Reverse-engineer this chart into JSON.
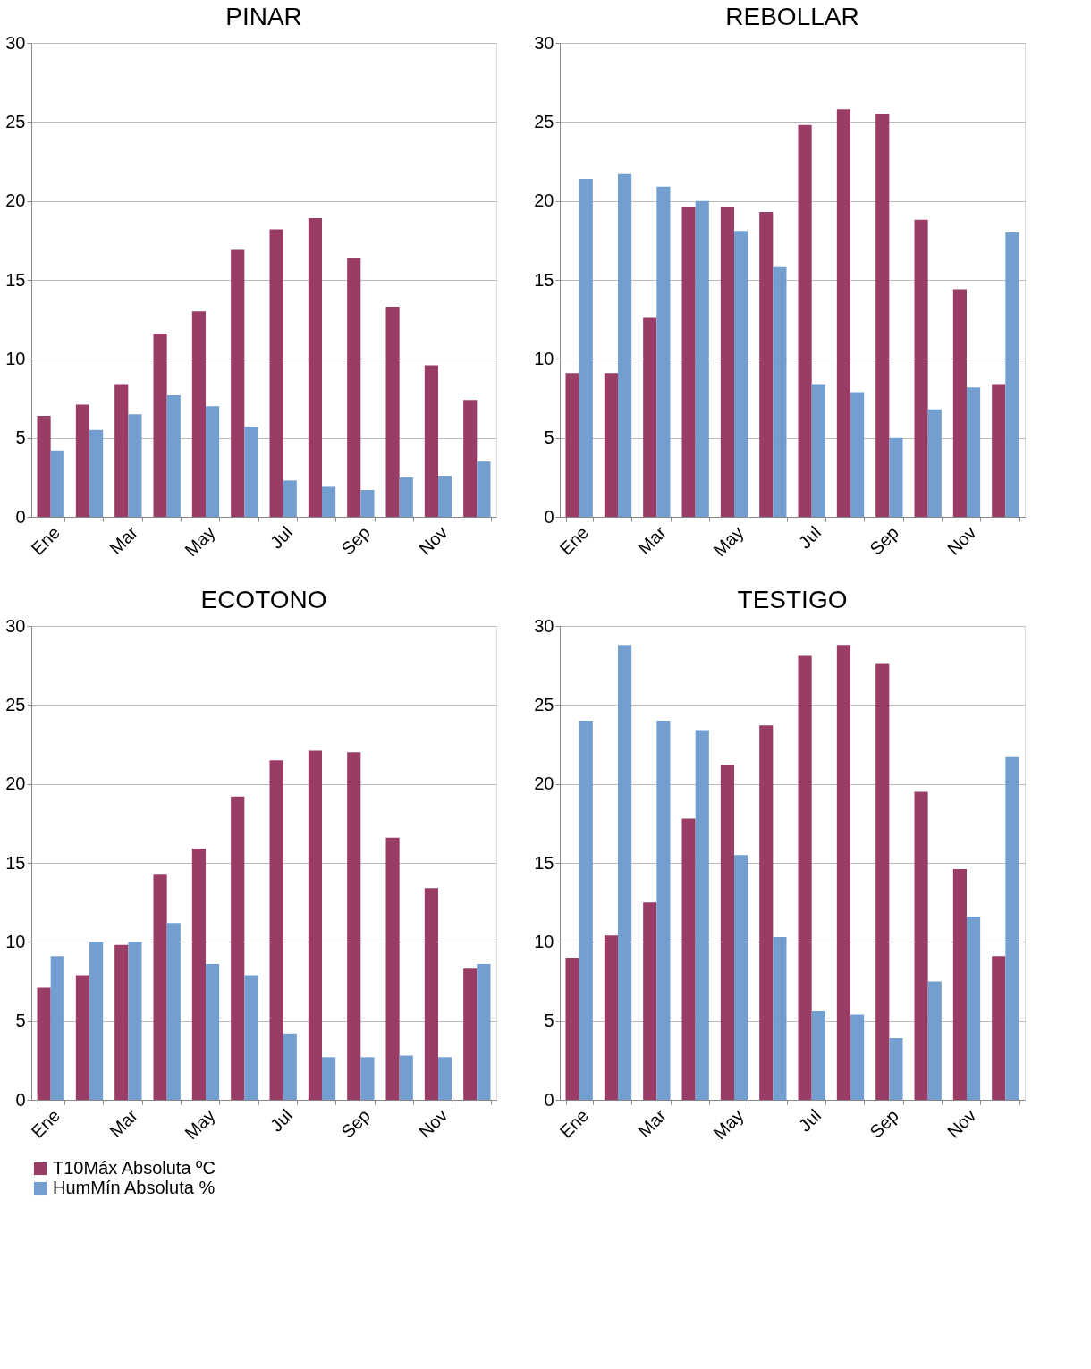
{
  "chart_data": [
    {
      "type": "bar",
      "title": "PINAR",
      "categories": [
        "Ene",
        null,
        "Mar",
        null,
        "May",
        null,
        "Jul",
        null,
        "Sep",
        null,
        "Nov",
        null
      ],
      "ylim": [
        0,
        30
      ],
      "yticks": [
        0,
        5,
        10,
        15,
        20,
        25,
        30
      ],
      "grid": "y",
      "legend": "bottom",
      "series": [
        {
          "name": "T10Máx Absoluta ºC",
          "color": "#993d66",
          "values": [
            6.4,
            7.1,
            8.4,
            11.6,
            13.0,
            16.9,
            18.2,
            18.9,
            16.4,
            13.3,
            9.6,
            7.4
          ]
        },
        {
          "name": "HumMín Absoluta %",
          "color": "#729fcf",
          "values": [
            4.2,
            5.5,
            6.5,
            7.7,
            7.0,
            5.7,
            2.3,
            1.9,
            1.7,
            2.5,
            2.6,
            3.5
          ]
        }
      ]
    },
    {
      "type": "bar",
      "title": "REBOLLAR",
      "categories": [
        "Ene",
        null,
        "Mar",
        null,
        "May",
        null,
        "Jul",
        null,
        "Sep",
        null,
        "Nov",
        null
      ],
      "ylim": [
        0,
        30
      ],
      "yticks": [
        0,
        5,
        10,
        15,
        20,
        25,
        30
      ],
      "grid": "y",
      "legend": "bottom",
      "series": [
        {
          "name": "T10Máx Absoluta ºC",
          "color": "#993d66",
          "values": [
            9.1,
            9.1,
            12.6,
            19.6,
            19.6,
            19.3,
            24.8,
            25.8,
            25.5,
            18.8,
            14.4,
            8.4
          ]
        },
        {
          "name": "HumMín Absoluta %",
          "color": "#729fcf",
          "values": [
            21.4,
            21.7,
            20.9,
            20.0,
            18.1,
            15.8,
            8.4,
            7.9,
            5.0,
            6.8,
            8.2,
            18.0
          ]
        }
      ]
    },
    {
      "type": "bar",
      "title": "ECOTONO",
      "categories": [
        "Ene",
        null,
        "Mar",
        null,
        "May",
        null,
        "Jul",
        null,
        "Sep",
        null,
        "Nov",
        null
      ],
      "ylim": [
        0,
        30
      ],
      "yticks": [
        0,
        5,
        10,
        15,
        20,
        25,
        30
      ],
      "grid": "y",
      "legend": "bottom",
      "series": [
        {
          "name": "T10Máx Absoluta ºC",
          "color": "#993d66",
          "values": [
            7.1,
            7.9,
            9.8,
            14.3,
            15.9,
            19.2,
            21.5,
            22.1,
            22.0,
            16.6,
            13.4,
            8.3
          ]
        },
        {
          "name": "HumMín Absoluta %",
          "color": "#729fcf",
          "values": [
            9.1,
            10.0,
            10.0,
            11.2,
            8.6,
            7.9,
            4.2,
            2.7,
            2.7,
            2.8,
            2.7,
            8.6
          ]
        }
      ]
    },
    {
      "type": "bar",
      "title": "TESTIGO",
      "categories": [
        "Ene",
        null,
        "Mar",
        null,
        "May",
        null,
        "Jul",
        null,
        "Sep",
        null,
        "Nov",
        null
      ],
      "ylim": [
        0,
        30
      ],
      "yticks": [
        0,
        5,
        10,
        15,
        20,
        25,
        30
      ],
      "grid": "y",
      "legend": "bottom",
      "series": [
        {
          "name": "T10Máx Absoluta ºC",
          "color": "#993d66",
          "values": [
            9.0,
            10.4,
            12.5,
            17.8,
            21.2,
            23.7,
            28.1,
            28.8,
            27.6,
            19.5,
            14.6,
            9.1
          ]
        },
        {
          "name": "HumMín Absoluta %",
          "color": "#729fcf",
          "values": [
            24.0,
            28.8,
            24.0,
            23.4,
            15.5,
            10.3,
            5.6,
            5.4,
            3.9,
            7.5,
            11.6,
            21.7
          ]
        }
      ]
    }
  ]
}
